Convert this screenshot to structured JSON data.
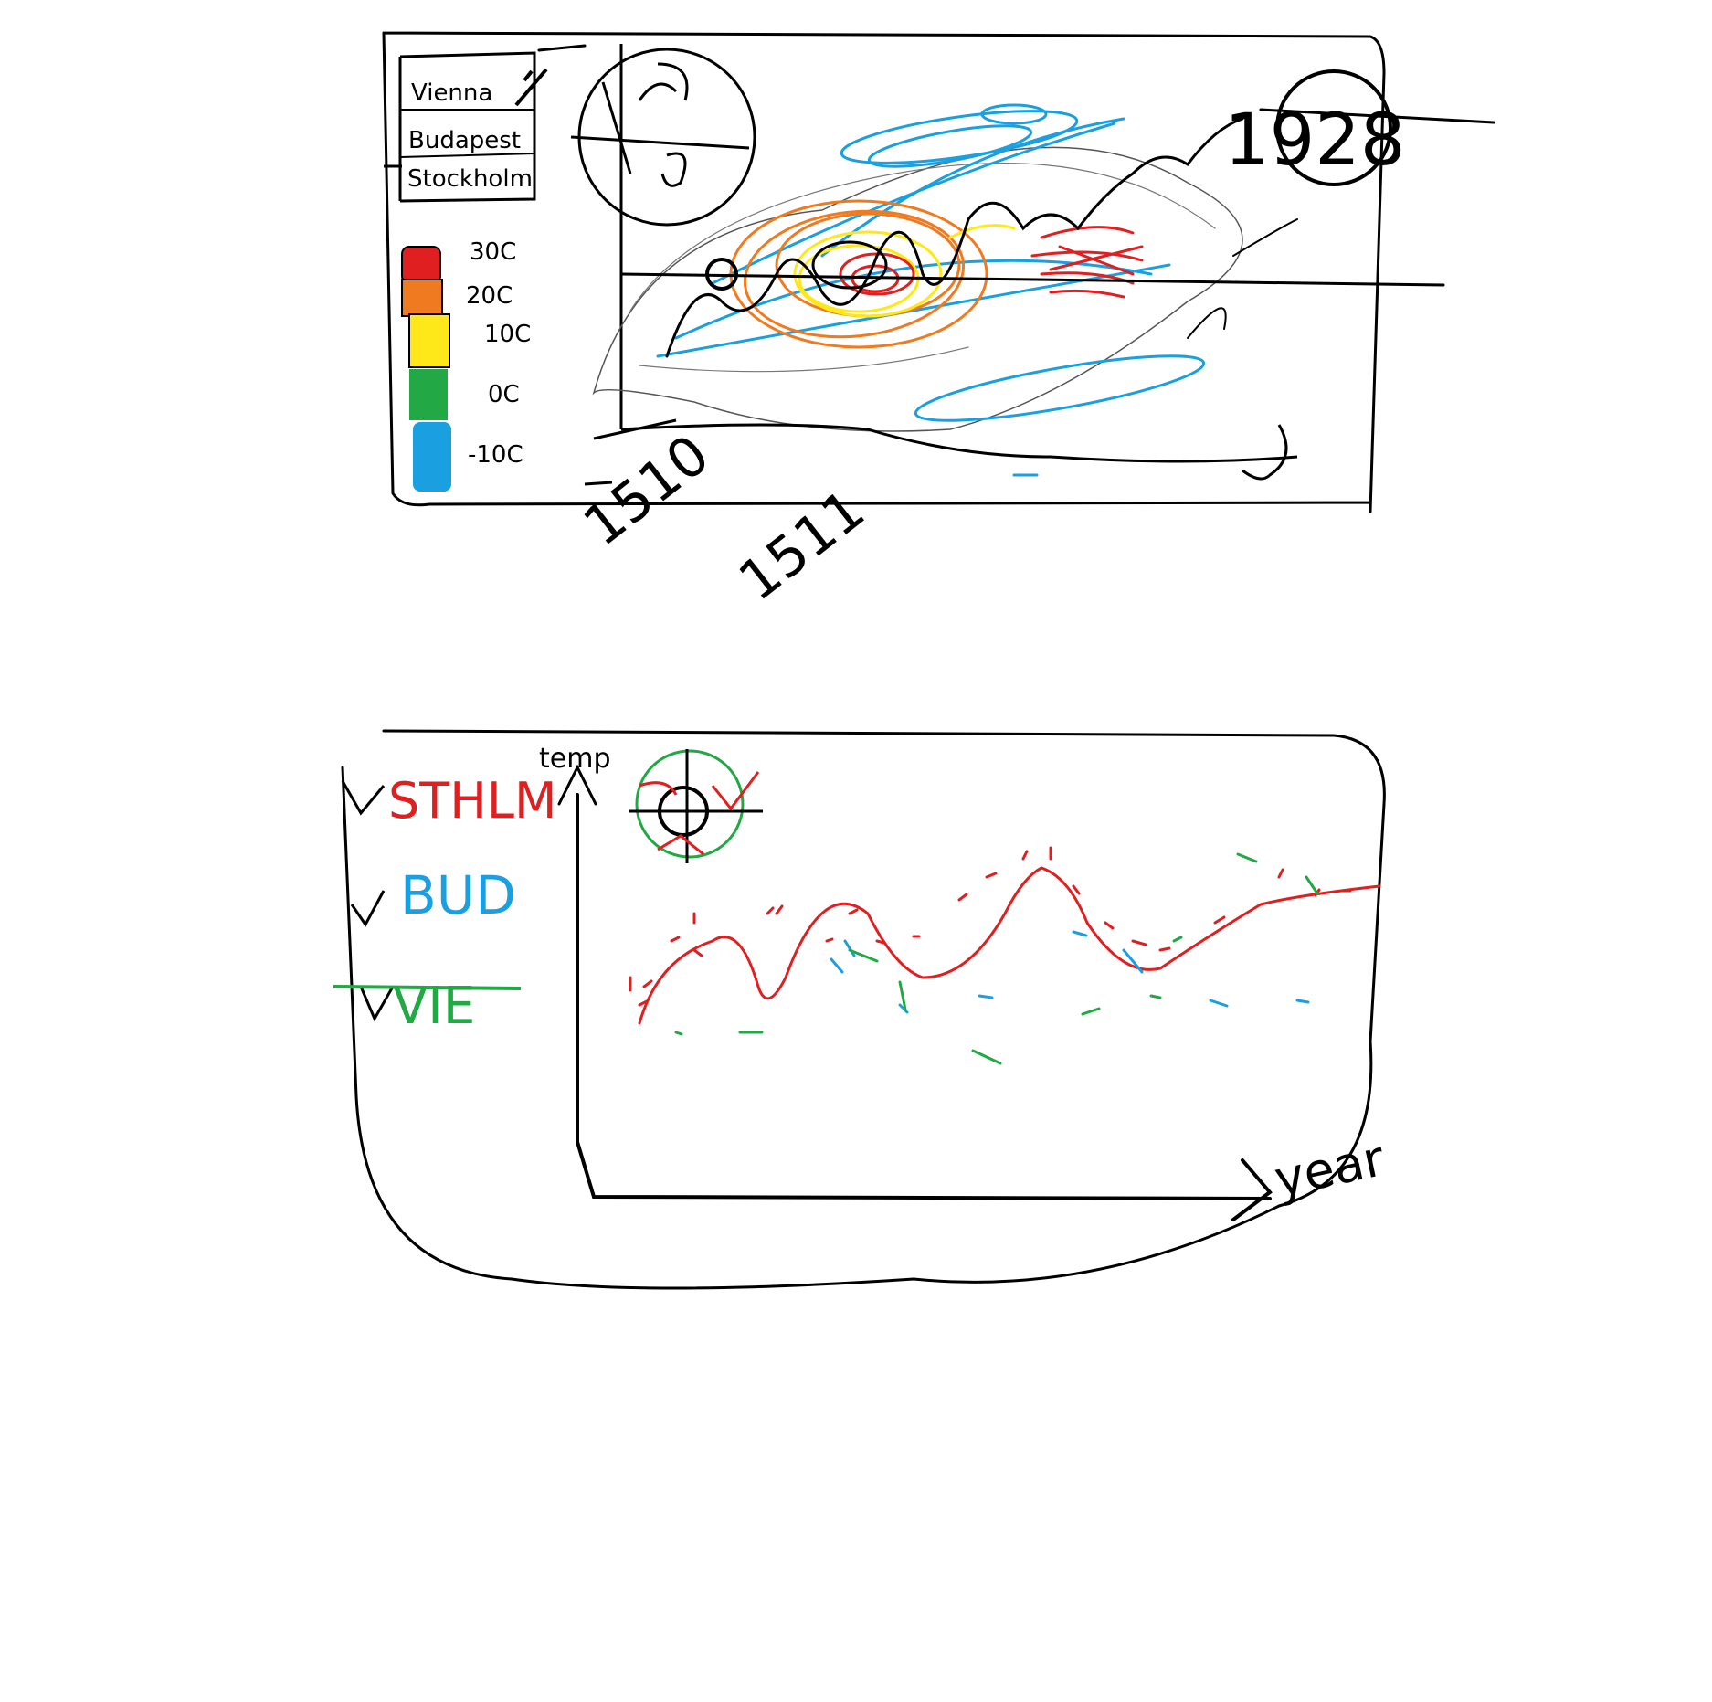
{
  "top_panel": {
    "city_list": [
      "Vienna",
      "Budapest",
      "Stockholm"
    ],
    "temp_scale": {
      "labels": [
        "30C",
        "20C",
        "10C",
        "0C",
        "-10C"
      ],
      "colors": [
        "#e02020",
        "#f07a20",
        "#ffe81a",
        "#22a845",
        "#1aa0e0"
      ]
    },
    "year_start": "1510",
    "year_second": "1511",
    "year_end": "1928",
    "compass_icon": "compass-icon"
  },
  "bottom_panel": {
    "legend": [
      {
        "label": "STHLM",
        "color": "#e02020"
      },
      {
        "label": "BUD",
        "color": "#1aa0e0"
      },
      {
        "label": "VIE",
        "color": "#22a845"
      }
    ],
    "y_axis_label": "temp",
    "x_axis_label": "year",
    "icon": "globe-icon"
  }
}
